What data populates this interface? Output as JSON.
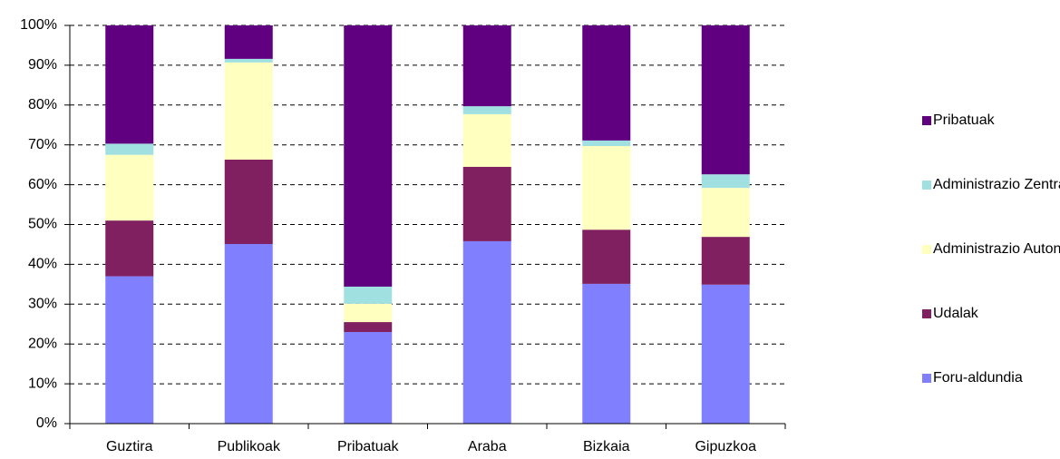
{
  "chart_data": {
    "type": "stacked_bar",
    "categories": [
      "Guztira",
      "Publikoak",
      "Pribatuak",
      "Araba",
      "Bizkaia",
      "Gipuzkoa"
    ],
    "series": [
      {
        "name": "Foru-aldundia",
        "color": "#8080ff",
        "values": [
          37,
          45.1,
          23,
          45.8,
          35.1,
          34.9
        ]
      },
      {
        "name": "Udalak",
        "color": "#802060",
        "values": [
          14,
          21.2,
          2.5,
          18.7,
          13.6,
          12
        ]
      },
      {
        "name": "Administrazio Autonomoa",
        "color": "#ffffc0",
        "values": [
          16.5,
          24.4,
          4.6,
          13.2,
          21,
          12.3
        ]
      },
      {
        "name": "Administrazio Zentrala",
        "color": "#a0e0e0",
        "values": [
          2.8,
          0.9,
          4.3,
          2,
          1.4,
          3.4
        ]
      },
      {
        "name": "Pribatuak",
        "color": "#600080",
        "values": [
          29.7,
          8.4,
          65.6,
          20.3,
          28.9,
          37.4
        ]
      }
    ],
    "ylim": [
      0,
      100
    ],
    "yticks": [
      {
        "value": 0,
        "label": "0%"
      },
      {
        "value": 10,
        "label": "10%"
      },
      {
        "value": 20,
        "label": "20%"
      },
      {
        "value": 30,
        "label": "30%"
      },
      {
        "value": 40,
        "label": "40%"
      },
      {
        "value": 50,
        "label": "50%"
      },
      {
        "value": 60,
        "label": "60%"
      },
      {
        "value": 70,
        "label": "70%"
      },
      {
        "value": 80,
        "label": "80%"
      },
      {
        "value": 90,
        "label": "90%"
      },
      {
        "value": 100,
        "label": "100%"
      }
    ],
    "grid": true,
    "legend": "right"
  }
}
